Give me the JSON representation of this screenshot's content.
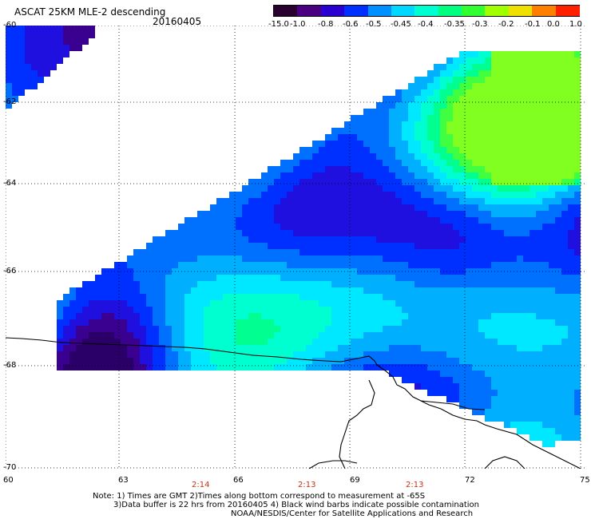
{
  "header": {
    "title": "ASCAT 25KM MLE-2 descending",
    "date": "20160405"
  },
  "colorbar": {
    "labels": [
      "-15.0",
      "-1.0",
      "-0.8",
      "-0.6",
      "-0.5",
      "-0.45",
      "-0.4",
      "-0.35",
      "-0.3",
      "-0.2",
      "-0.1",
      "0.0",
      "1.0"
    ],
    "colors": [
      "#2a0030",
      "#4a0080",
      "#2a00d0",
      "#0030ff",
      "#0090ff",
      "#00d8ff",
      "#00ffd0",
      "#00ff80",
      "#30ff30",
      "#a0ff00",
      "#f0e000",
      "#ff8000",
      "#ff2000"
    ]
  },
  "axes": {
    "lat_labels": [
      "-60",
      "-62",
      "-64",
      "-66",
      "-68",
      "-70"
    ],
    "lon_labels": [
      "60",
      "63",
      "66",
      "69",
      "72",
      "75"
    ]
  },
  "pass_times": [
    "2:14",
    "2:13",
    "2:13"
  ],
  "notes": {
    "line1": "Note: 1) Times are GMT 2)Times along bottom correspond to measurement at -65S",
    "line2": "3)Data buffer is 22 hrs from 20160405 4) Black wind barbs indicate possible contamination",
    "line3": "NOAA/NESDIS/Center for Satellite Applications and Research"
  }
}
